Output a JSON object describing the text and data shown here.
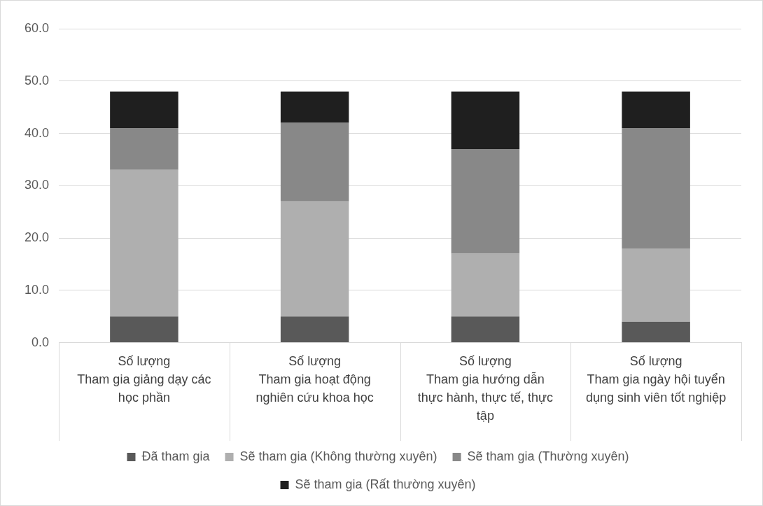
{
  "chart_data": {
    "type": "bar",
    "stacked": true,
    "grid": "y",
    "legend": "bottom",
    "categories": [
      "Số lượng\nTham gia giảng dạy các học phần",
      "Số lượng\nTham gia hoạt động nghiên cứu khoa học",
      "Số lượng\nTham gia hướng dẫn thực hành, thực tế, thực tập",
      "Số lượng\nTham gia ngày hội tuyển dụng sinh viên tốt nghiệp"
    ],
    "ylim": [
      0,
      60
    ],
    "yticks": [
      {
        "value": 0,
        "label": "0.0"
      },
      {
        "value": 10,
        "label": "10.0"
      },
      {
        "value": 20,
        "label": "20.0"
      },
      {
        "value": 30,
        "label": "30.0"
      },
      {
        "value": 40,
        "label": "40.0"
      },
      {
        "value": 50,
        "label": "50.0"
      },
      {
        "value": 60,
        "label": "60.0"
      }
    ],
    "series": [
      {
        "name": "Đã tham gia",
        "color": "#595959",
        "values": [
          5,
          5,
          5,
          4
        ]
      },
      {
        "name": "Sẽ tham gia (Không thường xuyên)",
        "color": "#afafaf",
        "values": [
          28,
          22,
          12,
          14
        ]
      },
      {
        "name": "Sẽ tham gia (Thường xuyên)",
        "color": "#888888",
        "values": [
          8,
          15,
          20,
          23
        ]
      },
      {
        "name": "Sẽ tham gia (Rất thường xuyên)",
        "color": "#1f1f1f",
        "values": [
          7,
          6,
          11,
          7
        ]
      }
    ]
  }
}
